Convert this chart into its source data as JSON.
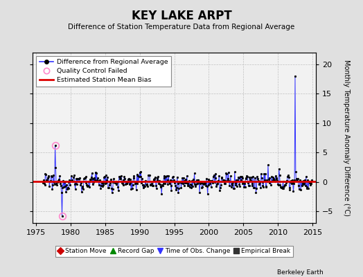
{
  "title": "KEY LAKE ARPT",
  "subtitle": "Difference of Station Temperature Data from Regional Average",
  "ylabel": "Monthly Temperature Anomaly Difference (°C)",
  "xlim": [
    1974.5,
    2015.5
  ],
  "ylim": [
    -7,
    22
  ],
  "yticks": [
    -5,
    0,
    5,
    10,
    15,
    20
  ],
  "xticks": [
    1975,
    1980,
    1985,
    1990,
    1995,
    2000,
    2005,
    2010,
    2015
  ],
  "bg_color": "#e0e0e0",
  "plot_bg_color": "#f2f2f2",
  "line_color": "#3333ff",
  "bias_color": "#dd0000",
  "bias_value": 0.05,
  "watermark": "Berkeley Earth",
  "qc_fail_years": [
    1977.75,
    1978.75
  ],
  "qc_fail_values": [
    6.2,
    -5.8
  ],
  "spike_year": 2012.5,
  "spike_value": 18.0,
  "footer_items": [
    {
      "label": "Station Move",
      "color": "#cc0000",
      "marker": "D",
      "fillstyle": "full"
    },
    {
      "label": "Record Gap",
      "color": "#008800",
      "marker": "^",
      "fillstyle": "full"
    },
    {
      "label": "Time of Obs. Change",
      "color": "#3333ff",
      "marker": "v",
      "fillstyle": "full"
    },
    {
      "label": "Empirical Break",
      "color": "#333333",
      "marker": "s",
      "fillstyle": "full"
    }
  ]
}
